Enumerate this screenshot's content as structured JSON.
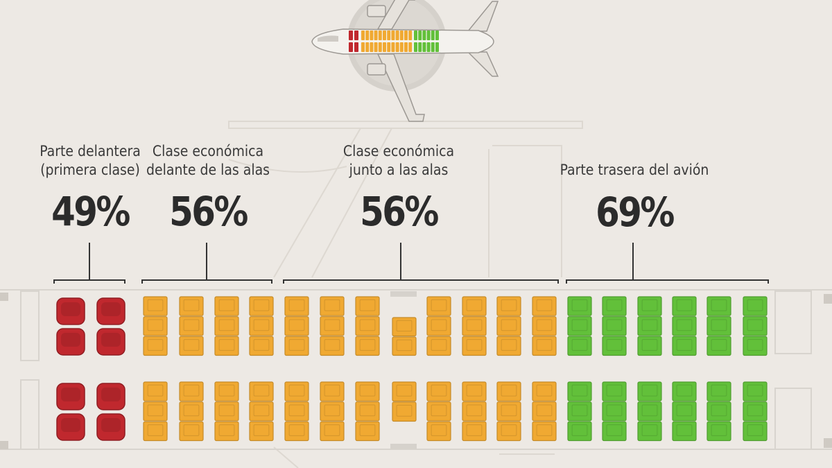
{
  "title": "",
  "colors": {
    "first_class": "#c0282e",
    "economy_front": "#f0a932",
    "economy_wings": "#f0a932",
    "rear": "#62c03a"
  },
  "sections": [
    {
      "id": "front",
      "label_lines": [
        "Parte delantera",
        "(primera clase)"
      ],
      "value": "49%"
    },
    {
      "id": "economy-front",
      "label_lines": [
        "Clase económica",
        "delante de las alas"
      ],
      "value": "56%"
    },
    {
      "id": "economy-wings",
      "label_lines": [
        "Clase económica",
        "junto a las alas"
      ],
      "value": "56%"
    },
    {
      "id": "rear",
      "label_lines": [
        "Parte trasera del avión"
      ],
      "value": "69%"
    }
  ],
  "chart_data": {
    "type": "bar",
    "title": "",
    "categories": [
      "Parte delantera (primera clase)",
      "Clase económica delante de las alas",
      "Clase económica junto a las alas",
      "Parte trasera del avión"
    ],
    "values": [
      49,
      56,
      56,
      69
    ],
    "unit": "%"
  }
}
